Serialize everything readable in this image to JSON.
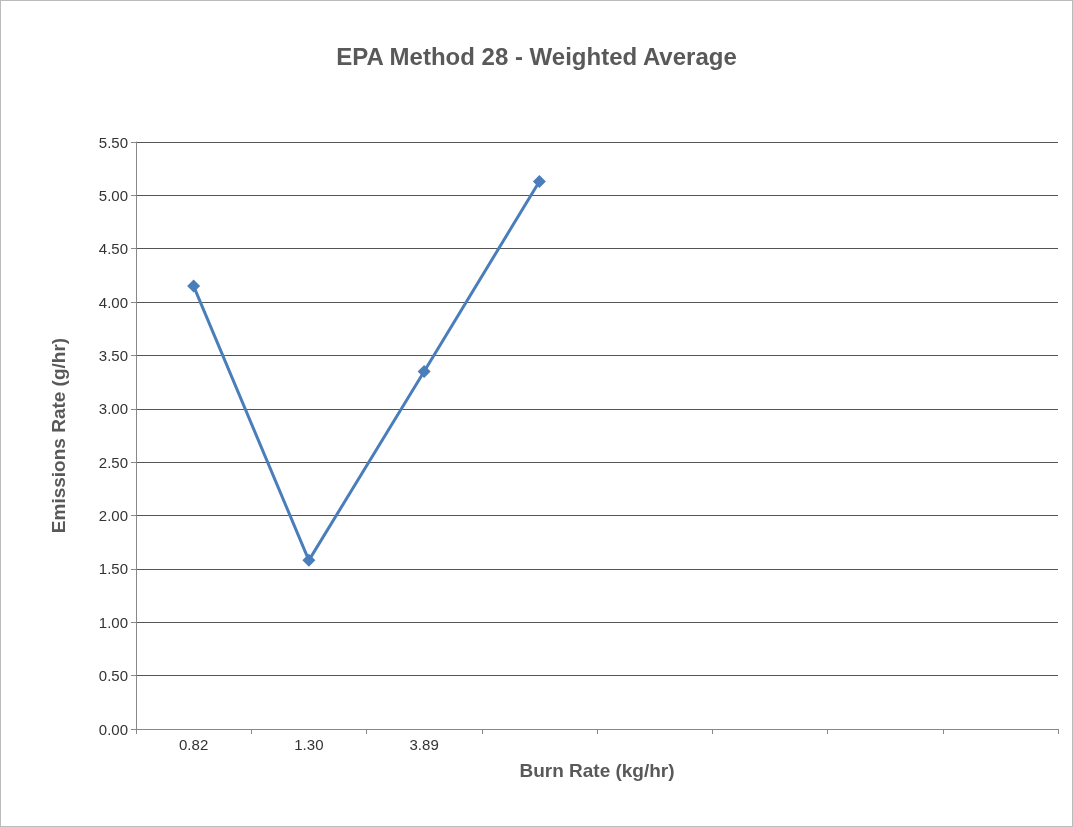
{
  "chart_data": {
    "type": "line",
    "title": "EPA Method 28 - Weighted Average",
    "xlabel": "Burn Rate (kg/hr)",
    "ylabel": "Emissions Rate (g/hr)",
    "categories": [
      "0.82",
      "1.30",
      "3.89",
      null,
      null,
      null,
      null,
      null
    ],
    "series": [
      {
        "color": "#4a7ebb",
        "values": [
          4.15,
          1.58,
          3.35,
          5.13,
          null,
          null,
          null,
          null
        ]
      }
    ],
    "ylim": [
      0,
      5.5
    ],
    "yticks": [
      {
        "value": 0,
        "label": "0.00"
      },
      {
        "value": 0.5,
        "label": "0.50"
      },
      {
        "value": 1,
        "label": "1.00"
      },
      {
        "value": 1.5,
        "label": "1.50"
      },
      {
        "value": 2,
        "label": "2.00"
      },
      {
        "value": 2.5,
        "label": "2.50"
      },
      {
        "value": 3,
        "label": "3.00"
      },
      {
        "value": 3.5,
        "label": "3.50"
      },
      {
        "value": 4,
        "label": "4.00"
      },
      {
        "value": 4.5,
        "label": "4.50"
      },
      {
        "value": 5,
        "label": "5.00"
      },
      {
        "value": 5.5,
        "label": "5.50"
      }
    ],
    "grid": "y",
    "marker": "diamond",
    "line_style": "solid"
  }
}
